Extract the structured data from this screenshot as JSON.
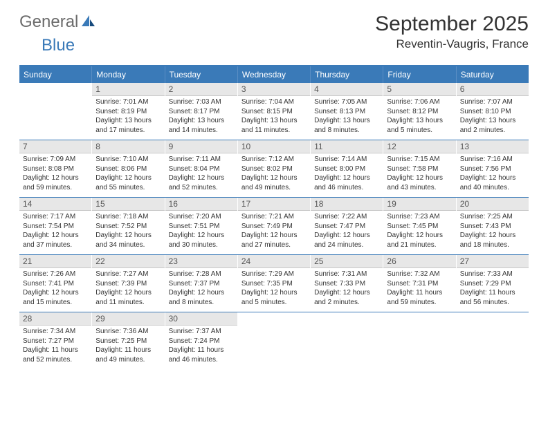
{
  "brand": {
    "name_a": "General",
    "name_b": "Blue"
  },
  "title": "September 2025",
  "location": "Reventin-Vaugris, France",
  "colors": {
    "accent": "#3a7ab8",
    "header_bg": "#3a7ab8",
    "header_text": "#ffffff",
    "daynum_bg": "#e7e7e7",
    "daynum_border": "#c9c9c9",
    "text": "#333333",
    "background": "#ffffff"
  },
  "weekdays": [
    "Sunday",
    "Monday",
    "Tuesday",
    "Wednesday",
    "Thursday",
    "Friday",
    "Saturday"
  ],
  "weeks": [
    [
      {
        "day": "",
        "sunrise": "",
        "sunset": "",
        "daylight": ""
      },
      {
        "day": "1",
        "sunrise": "Sunrise: 7:01 AM",
        "sunset": "Sunset: 8:19 PM",
        "daylight": "Daylight: 13 hours and 17 minutes."
      },
      {
        "day": "2",
        "sunrise": "Sunrise: 7:03 AM",
        "sunset": "Sunset: 8:17 PM",
        "daylight": "Daylight: 13 hours and 14 minutes."
      },
      {
        "day": "3",
        "sunrise": "Sunrise: 7:04 AM",
        "sunset": "Sunset: 8:15 PM",
        "daylight": "Daylight: 13 hours and 11 minutes."
      },
      {
        "day": "4",
        "sunrise": "Sunrise: 7:05 AM",
        "sunset": "Sunset: 8:13 PM",
        "daylight": "Daylight: 13 hours and 8 minutes."
      },
      {
        "day": "5",
        "sunrise": "Sunrise: 7:06 AM",
        "sunset": "Sunset: 8:12 PM",
        "daylight": "Daylight: 13 hours and 5 minutes."
      },
      {
        "day": "6",
        "sunrise": "Sunrise: 7:07 AM",
        "sunset": "Sunset: 8:10 PM",
        "daylight": "Daylight: 13 hours and 2 minutes."
      }
    ],
    [
      {
        "day": "7",
        "sunrise": "Sunrise: 7:09 AM",
        "sunset": "Sunset: 8:08 PM",
        "daylight": "Daylight: 12 hours and 59 minutes."
      },
      {
        "day": "8",
        "sunrise": "Sunrise: 7:10 AM",
        "sunset": "Sunset: 8:06 PM",
        "daylight": "Daylight: 12 hours and 55 minutes."
      },
      {
        "day": "9",
        "sunrise": "Sunrise: 7:11 AM",
        "sunset": "Sunset: 8:04 PM",
        "daylight": "Daylight: 12 hours and 52 minutes."
      },
      {
        "day": "10",
        "sunrise": "Sunrise: 7:12 AM",
        "sunset": "Sunset: 8:02 PM",
        "daylight": "Daylight: 12 hours and 49 minutes."
      },
      {
        "day": "11",
        "sunrise": "Sunrise: 7:14 AM",
        "sunset": "Sunset: 8:00 PM",
        "daylight": "Daylight: 12 hours and 46 minutes."
      },
      {
        "day": "12",
        "sunrise": "Sunrise: 7:15 AM",
        "sunset": "Sunset: 7:58 PM",
        "daylight": "Daylight: 12 hours and 43 minutes."
      },
      {
        "day": "13",
        "sunrise": "Sunrise: 7:16 AM",
        "sunset": "Sunset: 7:56 PM",
        "daylight": "Daylight: 12 hours and 40 minutes."
      }
    ],
    [
      {
        "day": "14",
        "sunrise": "Sunrise: 7:17 AM",
        "sunset": "Sunset: 7:54 PM",
        "daylight": "Daylight: 12 hours and 37 minutes."
      },
      {
        "day": "15",
        "sunrise": "Sunrise: 7:18 AM",
        "sunset": "Sunset: 7:52 PM",
        "daylight": "Daylight: 12 hours and 34 minutes."
      },
      {
        "day": "16",
        "sunrise": "Sunrise: 7:20 AM",
        "sunset": "Sunset: 7:51 PM",
        "daylight": "Daylight: 12 hours and 30 minutes."
      },
      {
        "day": "17",
        "sunrise": "Sunrise: 7:21 AM",
        "sunset": "Sunset: 7:49 PM",
        "daylight": "Daylight: 12 hours and 27 minutes."
      },
      {
        "day": "18",
        "sunrise": "Sunrise: 7:22 AM",
        "sunset": "Sunset: 7:47 PM",
        "daylight": "Daylight: 12 hours and 24 minutes."
      },
      {
        "day": "19",
        "sunrise": "Sunrise: 7:23 AM",
        "sunset": "Sunset: 7:45 PM",
        "daylight": "Daylight: 12 hours and 21 minutes."
      },
      {
        "day": "20",
        "sunrise": "Sunrise: 7:25 AM",
        "sunset": "Sunset: 7:43 PM",
        "daylight": "Daylight: 12 hours and 18 minutes."
      }
    ],
    [
      {
        "day": "21",
        "sunrise": "Sunrise: 7:26 AM",
        "sunset": "Sunset: 7:41 PM",
        "daylight": "Daylight: 12 hours and 15 minutes."
      },
      {
        "day": "22",
        "sunrise": "Sunrise: 7:27 AM",
        "sunset": "Sunset: 7:39 PM",
        "daylight": "Daylight: 12 hours and 11 minutes."
      },
      {
        "day": "23",
        "sunrise": "Sunrise: 7:28 AM",
        "sunset": "Sunset: 7:37 PM",
        "daylight": "Daylight: 12 hours and 8 minutes."
      },
      {
        "day": "24",
        "sunrise": "Sunrise: 7:29 AM",
        "sunset": "Sunset: 7:35 PM",
        "daylight": "Daylight: 12 hours and 5 minutes."
      },
      {
        "day": "25",
        "sunrise": "Sunrise: 7:31 AM",
        "sunset": "Sunset: 7:33 PM",
        "daylight": "Daylight: 12 hours and 2 minutes."
      },
      {
        "day": "26",
        "sunrise": "Sunrise: 7:32 AM",
        "sunset": "Sunset: 7:31 PM",
        "daylight": "Daylight: 11 hours and 59 minutes."
      },
      {
        "day": "27",
        "sunrise": "Sunrise: 7:33 AM",
        "sunset": "Sunset: 7:29 PM",
        "daylight": "Daylight: 11 hours and 56 minutes."
      }
    ],
    [
      {
        "day": "28",
        "sunrise": "Sunrise: 7:34 AM",
        "sunset": "Sunset: 7:27 PM",
        "daylight": "Daylight: 11 hours and 52 minutes."
      },
      {
        "day": "29",
        "sunrise": "Sunrise: 7:36 AM",
        "sunset": "Sunset: 7:25 PM",
        "daylight": "Daylight: 11 hours and 49 minutes."
      },
      {
        "day": "30",
        "sunrise": "Sunrise: 7:37 AM",
        "sunset": "Sunset: 7:24 PM",
        "daylight": "Daylight: 11 hours and 46 minutes."
      },
      {
        "day": "",
        "sunrise": "",
        "sunset": "",
        "daylight": ""
      },
      {
        "day": "",
        "sunrise": "",
        "sunset": "",
        "daylight": ""
      },
      {
        "day": "",
        "sunrise": "",
        "sunset": "",
        "daylight": ""
      },
      {
        "day": "",
        "sunrise": "",
        "sunset": "",
        "daylight": ""
      }
    ]
  ]
}
